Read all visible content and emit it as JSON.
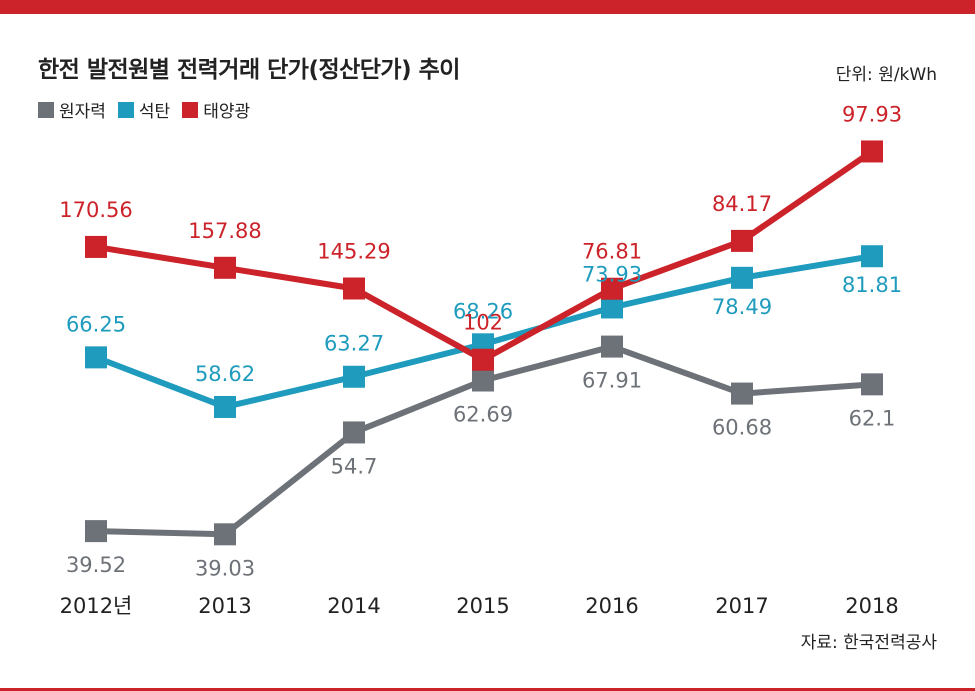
{
  "header": {
    "title": "한전 발전원별 전력거래 단가(정산단가) 추이",
    "unit": "단위: 원/kWh"
  },
  "footer": {
    "source": "자료: 한국전력공사"
  },
  "colors": {
    "accent_bar": "#cc2229",
    "text": "#222222"
  },
  "chart_data": {
    "type": "line",
    "categories": [
      "2012년",
      "2013",
      "2014",
      "2015",
      "2016",
      "2017",
      "2018"
    ],
    "series": [
      {
        "name": "원자력",
        "color": "#6d7278",
        "values": [
          39.52,
          39.03,
          54.7,
          62.69,
          67.91,
          60.68,
          62.1
        ]
      },
      {
        "name": "석탄",
        "color": "#1e9bbd",
        "values": [
          66.25,
          58.62,
          63.27,
          68.26,
          73.93,
          78.49,
          81.81
        ]
      },
      {
        "name": "태양광",
        "color": "#cc2229",
        "values": [
          170.56,
          157.88,
          145.29,
          102,
          76.81,
          84.17,
          97.93
        ]
      }
    ],
    "value_labels": [
      [
        "39.52",
        "39.03",
        "54.7",
        "62.69",
        "67.91",
        "60.68",
        "62.1"
      ],
      [
        "66.25",
        "58.62",
        "63.27",
        "68.26",
        "73.93",
        "78.49",
        "81.81"
      ],
      [
        "170.56",
        "157.88",
        "145.29",
        "102",
        "76.81",
        "84.17",
        "97.93"
      ]
    ],
    "legend_position": "top-left",
    "grid": false,
    "marker": "square"
  }
}
